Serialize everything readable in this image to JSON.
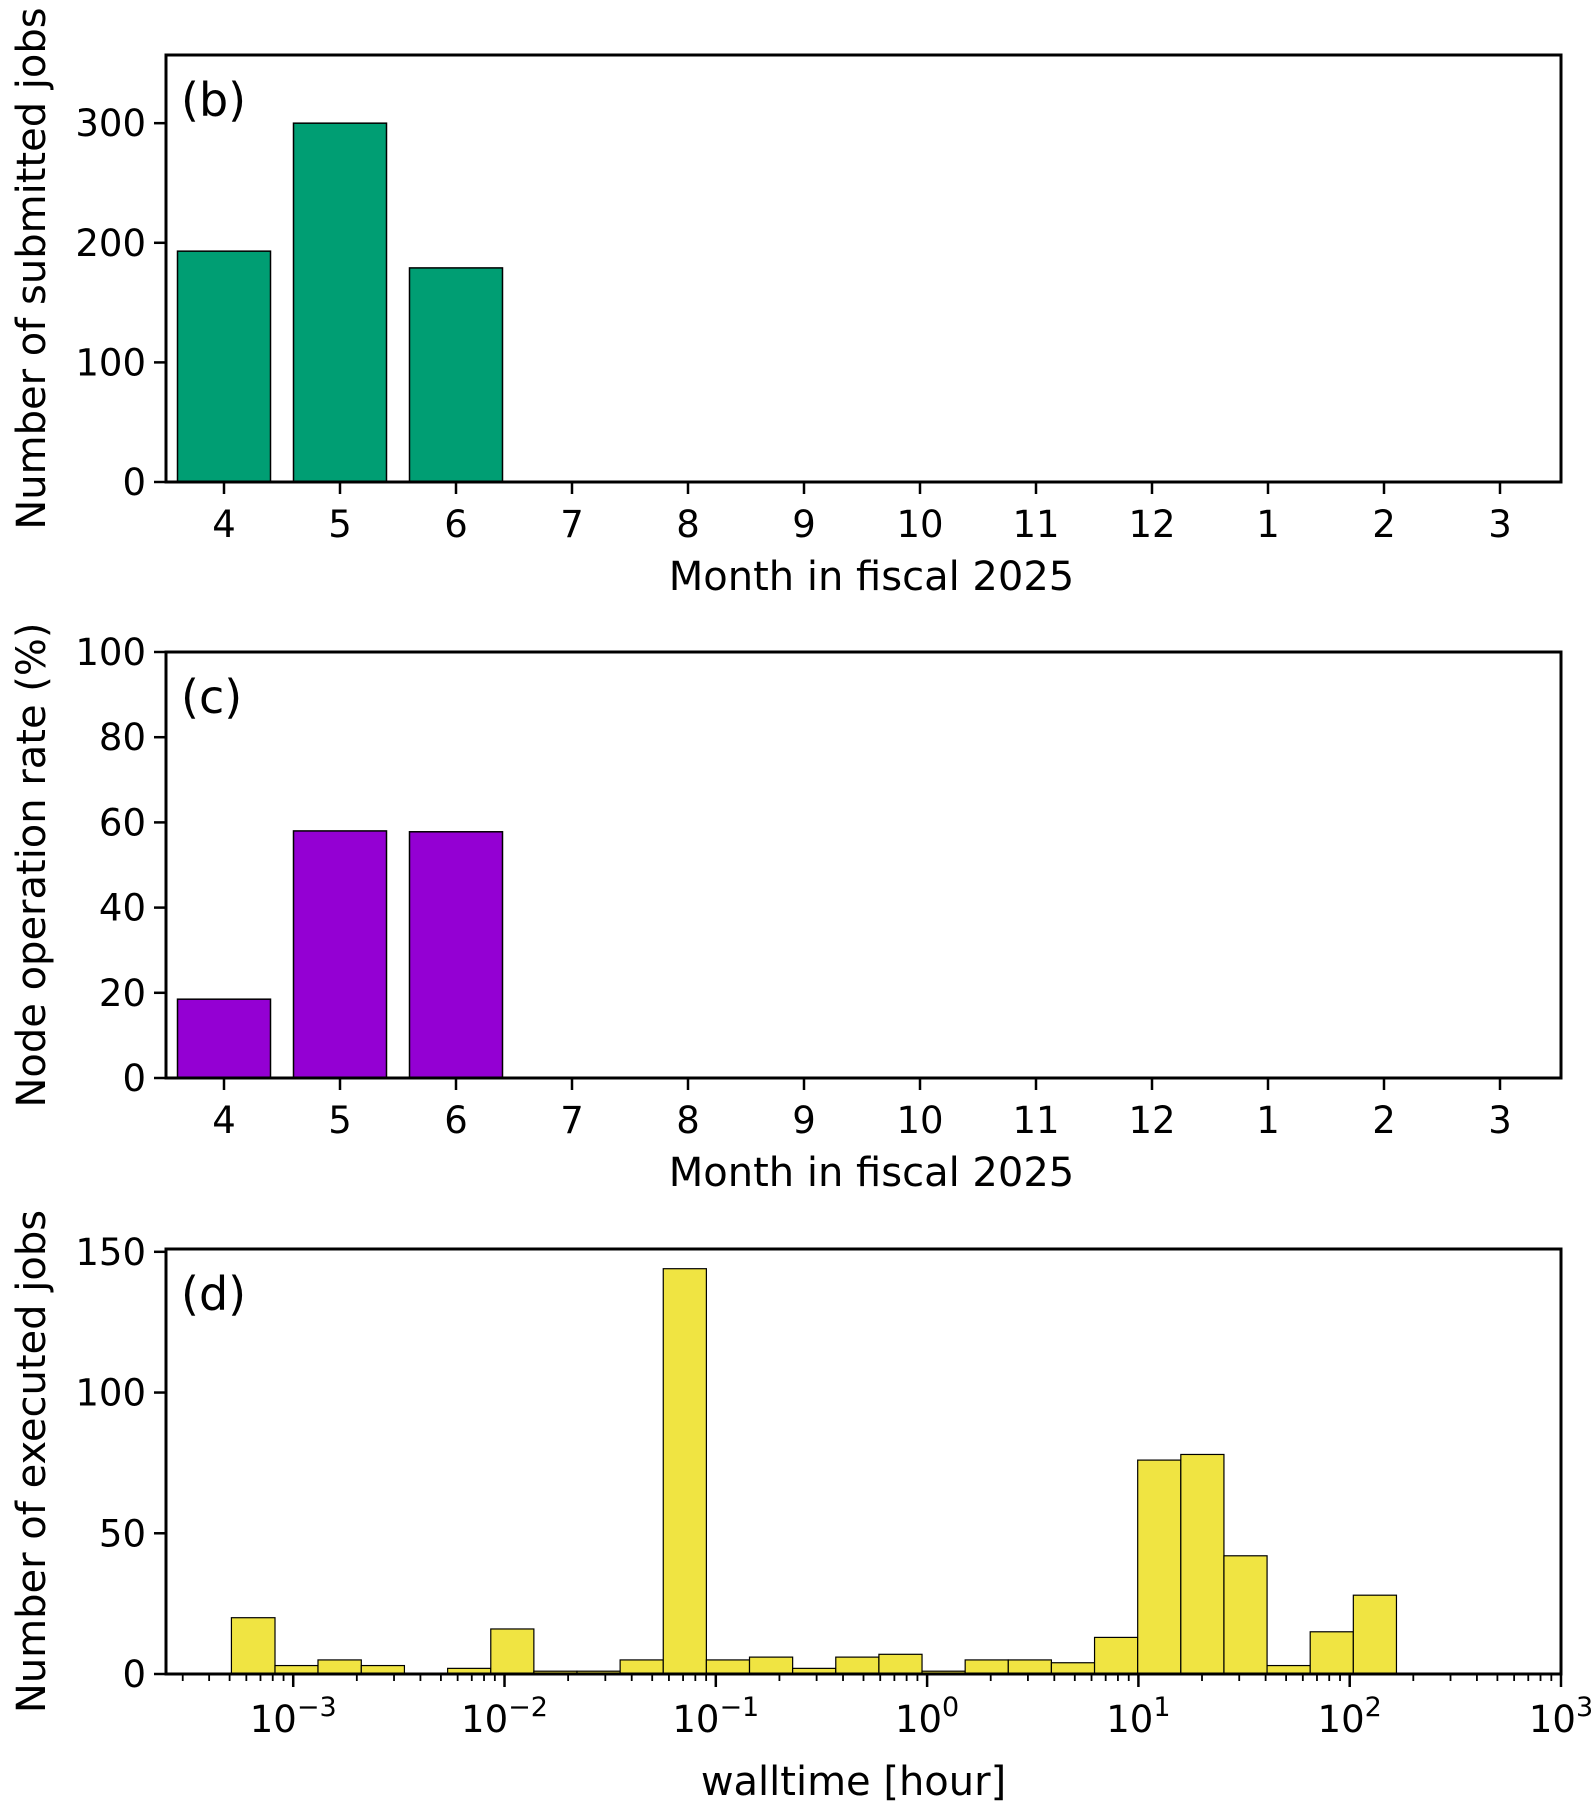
{
  "chart_data": [
    {
      "id": "b",
      "type": "bar",
      "panel_label": "(b)",
      "xlabel": "Month in fiscal 2025",
      "ylabel": "Number of submitted jobs",
      "categories": [
        "4",
        "5",
        "6",
        "7",
        "8",
        "9",
        "10",
        "11",
        "12",
        "1",
        "2",
        "3"
      ],
      "values": [
        193,
        300,
        179,
        0,
        0,
        0,
        0,
        0,
        0,
        0,
        0,
        0
      ],
      "ylim": [
        0,
        357
      ],
      "yticks": [
        0,
        100,
        200,
        300
      ],
      "color": "#009e73",
      "grid": false,
      "legend": "none"
    },
    {
      "id": "c",
      "type": "bar",
      "panel_label": "(c)",
      "xlabel": "Month in fiscal 2025",
      "ylabel": "Node operation rate (%)",
      "categories": [
        "4",
        "5",
        "6",
        "7",
        "8",
        "9",
        "10",
        "11",
        "12",
        "1",
        "2",
        "3"
      ],
      "values": [
        18.5,
        58.0,
        57.8,
        0,
        0,
        0,
        0,
        0,
        0,
        0,
        0,
        0
      ],
      "ylim": [
        0,
        100
      ],
      "yticks": [
        0,
        20,
        40,
        60,
        80,
        100
      ],
      "color": "#9400d3",
      "grid": false,
      "legend": "none"
    },
    {
      "id": "d",
      "type": "bar",
      "subtype": "histogram",
      "panel_label": "(d)",
      "xlabel": "walltime [hour]",
      "ylabel": "Number of executed jobs",
      "xscale": "log",
      "xlim": [
        0.00025,
        1000
      ],
      "ylim": [
        0,
        151
      ],
      "yticks": [
        0,
        50,
        100,
        150
      ],
      "xticks": [
        {
          "value": 0.001,
          "base": "10",
          "exp": "−3"
        },
        {
          "value": 0.01,
          "base": "10",
          "exp": "−2"
        },
        {
          "value": 0.1,
          "base": "10",
          "exp": "−1"
        },
        {
          "value": 1,
          "base": "10",
          "exp": "0"
        },
        {
          "value": 10,
          "base": "10",
          "exp": "1"
        },
        {
          "value": 100,
          "base": "10",
          "exp": "2"
        },
        {
          "value": 1000,
          "base": "10",
          "exp": "3"
        }
      ],
      "bin_edges": [
        0.00051,
        0.00082,
        0.00131,
        0.0021,
        0.00336,
        0.00538,
        0.00861,
        0.01377,
        0.02203,
        0.03525,
        0.0564,
        0.09024,
        0.14438,
        0.23101,
        0.36962,
        0.59139,
        0.94622,
        1.514,
        2.422,
        3.875,
        6.201,
        9.922,
        15.875,
        25.4,
        40.64,
        65.02,
        104.03,
        166.45
      ],
      "values": [
        20,
        3,
        5,
        3,
        0,
        2,
        16,
        1,
        1,
        5,
        144,
        5,
        6,
        2,
        6,
        7,
        1,
        5,
        5,
        4,
        13,
        76,
        78,
        42,
        3,
        15,
        28
      ],
      "color": "#f0e442",
      "grid": false,
      "legend": "none"
    }
  ]
}
